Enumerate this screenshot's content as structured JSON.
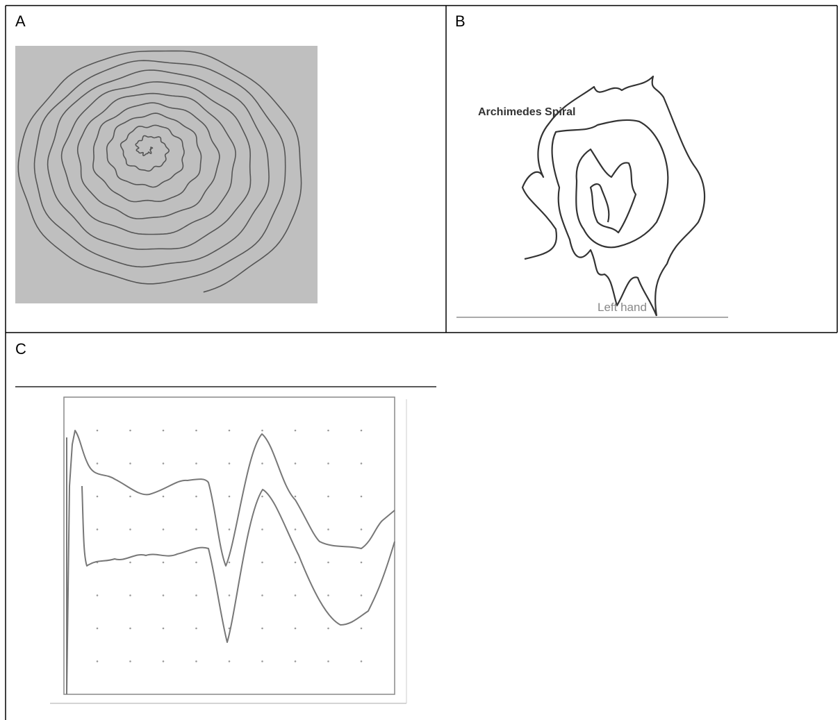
{
  "panels": [
    {
      "label": "A"
    },
    {
      "label": "B",
      "title": "Archimedes Spiral",
      "caption": "Left hand"
    },
    {
      "label": "C"
    }
  ]
}
